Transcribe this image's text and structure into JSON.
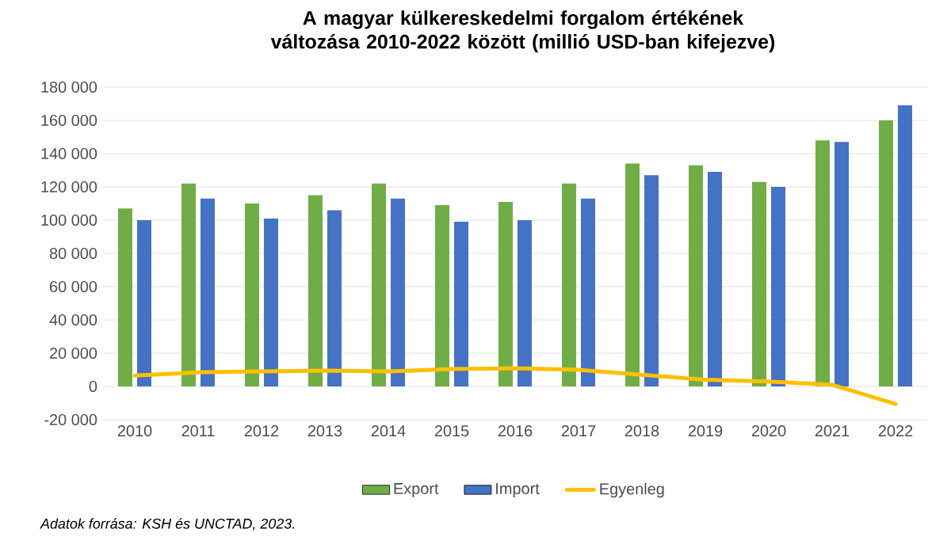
{
  "chart_data": {
    "type": "bar",
    "title": "A magyar külkereskedelmi forgalom értékének változása 2010-2022 között (millió USD-ban kifejezve)",
    "categories": [
      "2010",
      "2011",
      "2012",
      "2013",
      "2014",
      "2015",
      "2016",
      "2017",
      "2018",
      "2019",
      "2020",
      "2021",
      "2022"
    ],
    "series": [
      {
        "name": "Export",
        "color": "#70ad47",
        "values": [
          107000,
          122000,
          110000,
          115000,
          122000,
          109000,
          111000,
          122000,
          134000,
          133000,
          123000,
          148000,
          160000
        ]
      },
      {
        "name": "Import",
        "color": "#4472c4",
        "values": [
          100000,
          113000,
          101000,
          106000,
          113000,
          99000,
          100000,
          113000,
          127000,
          129000,
          120000,
          147000,
          169000
        ]
      },
      {
        "name": "Egyenleg",
        "type": "line",
        "color": "#ffc000",
        "values": [
          6500,
          8500,
          9000,
          9500,
          9000,
          10500,
          11000,
          10000,
          7000,
          4000,
          3000,
          1000,
          -10500
        ]
      }
    ],
    "ylim": [
      -20000,
      180000
    ],
    "yticks": [
      {
        "value": -20000,
        "label": "-20 000"
      },
      0,
      {
        "value": 20000,
        "label": "20 000"
      },
      {
        "value": 40000,
        "label": "40 000"
      },
      {
        "value": 60000,
        "label": "60 000"
      },
      {
        "value": 80000,
        "label": "80 000"
      },
      {
        "value": 100000,
        "label": "100 000"
      },
      {
        "value": 120000,
        "label": "120 000"
      },
      {
        "value": 140000,
        "label": "140 000"
      },
      {
        "value": 160000,
        "label": "160 000"
      },
      {
        "value": 180000,
        "label": "180 000"
      }
    ],
    "grid": "y",
    "legend": "bottom",
    "annotations": [
      "Adatok forrása: KSH és UNCTAD, 2023."
    ]
  }
}
